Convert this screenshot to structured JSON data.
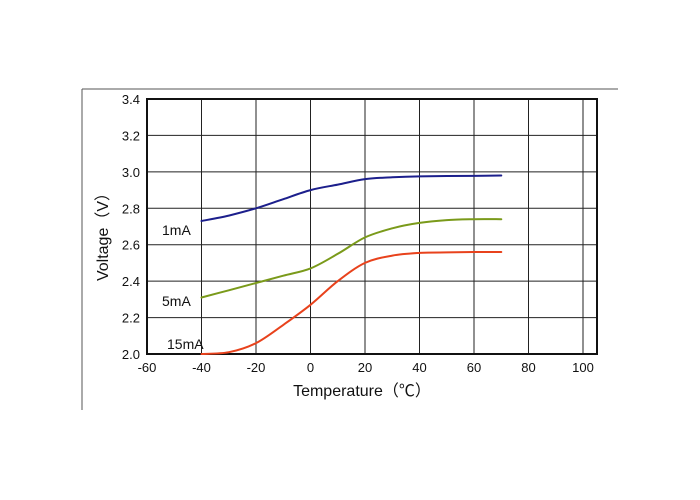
{
  "chart_data": {
    "type": "line",
    "title": "",
    "xlabel": "Temperature（℃）",
    "ylabel": "Voltage（V）",
    "xlim": [
      -60,
      100
    ],
    "ylim": [
      2.0,
      3.4
    ],
    "xticks": [
      -60,
      -40,
      -20,
      0,
      20,
      40,
      60,
      80,
      100
    ],
    "yticks": [
      2.0,
      2.2,
      2.4,
      2.6,
      2.8,
      3.0,
      3.2,
      3.4
    ],
    "xtick_labels": [
      "-60",
      "-40",
      "-20",
      "0",
      "20",
      "40",
      "60",
      "80",
      "100"
    ],
    "ytick_labels": [
      "2.0",
      "2.2",
      "2.4",
      "2.6",
      "2.8",
      "3.0",
      "3.2",
      "3.4"
    ],
    "grid": true,
    "legend": "inline labels at left end of each curve",
    "series": [
      {
        "name": "1mA",
        "color": "#1c1f8c",
        "x": [
          -40,
          -30,
          -20,
          -10,
          0,
          10,
          20,
          30,
          40,
          50,
          60,
          70
        ],
        "y": [
          2.73,
          2.76,
          2.8,
          2.85,
          2.9,
          2.93,
          2.96,
          2.97,
          2.975,
          2.977,
          2.978,
          2.98
        ]
      },
      {
        "name": "5mA",
        "color": "#7a9a1a",
        "x": [
          -40,
          -30,
          -20,
          -10,
          0,
          10,
          20,
          30,
          40,
          50,
          60,
          70
        ],
        "y": [
          2.31,
          2.35,
          2.39,
          2.43,
          2.47,
          2.55,
          2.64,
          2.69,
          2.72,
          2.735,
          2.74,
          2.74
        ]
      },
      {
        "name": "15mA",
        "color": "#e8421c",
        "x": [
          -40,
          -30,
          -20,
          -10,
          0,
          10,
          20,
          30,
          40,
          50,
          60,
          70
        ],
        "y": [
          2.0,
          2.01,
          2.06,
          2.16,
          2.27,
          2.4,
          2.5,
          2.54,
          2.555,
          2.558,
          2.56,
          2.56
        ]
      }
    ]
  }
}
